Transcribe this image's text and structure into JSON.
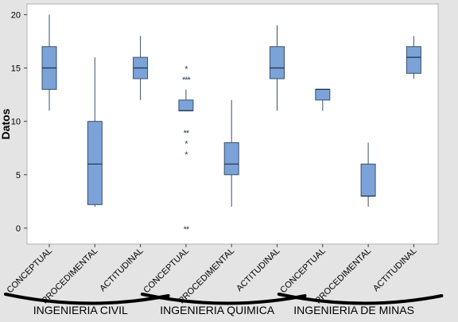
{
  "chart_data": {
    "type": "boxplot",
    "title": "",
    "xlabel": "",
    "ylabel": "Datos",
    "ylim": [
      -1.5,
      21
    ],
    "yticks": [
      0,
      5,
      10,
      15,
      20
    ],
    "grid": false,
    "box_color": "#7ba3d8",
    "box_edge_color": "#3a4f6b",
    "categories": [
      "CONCEPTUAL",
      "PROCEDIMENTAL",
      "ACTITUDINAL",
      "CONCEPTUAL",
      "PROCEDIMENTAL",
      "ACTITUDINAL",
      "CONCEPTUAL",
      "PROCEDIMENTAL",
      "ACTITUDINAL"
    ],
    "boxes": [
      {
        "whisker_low": 11,
        "q1": 13,
        "median": 15,
        "q3": 17,
        "whisker_high": 20,
        "outliers": []
      },
      {
        "whisker_low": 2,
        "q1": 2.2,
        "median": 6,
        "q3": 10,
        "whisker_high": 16,
        "outliers": []
      },
      {
        "whisker_low": 12,
        "q1": 14,
        "median": 15,
        "q3": 16,
        "whisker_high": 18,
        "outliers": []
      },
      {
        "whisker_low": 11,
        "q1": 11,
        "median": 11,
        "q3": 12,
        "whisker_high": 13,
        "outliers": [
          {
            "value": 15,
            "label": "*"
          },
          {
            "value": 14,
            "label": "***"
          },
          {
            "value": 9,
            "label": "**"
          },
          {
            "value": 8,
            "label": "*"
          },
          {
            "value": 7,
            "label": "*"
          },
          {
            "value": 0,
            "label": "**"
          }
        ]
      },
      {
        "whisker_low": 2,
        "q1": 5,
        "median": 6,
        "q3": 8,
        "whisker_high": 12,
        "outliers": []
      },
      {
        "whisker_low": 11,
        "q1": 14,
        "median": 15,
        "q3": 17,
        "whisker_high": 19,
        "outliers": []
      },
      {
        "whisker_low": 11,
        "q1": 12,
        "median": 13,
        "q3": 13,
        "whisker_high": 13,
        "outliers": []
      },
      {
        "whisker_low": 2,
        "q1": 3,
        "median": 3,
        "q3": 6,
        "whisker_high": 8,
        "outliers": []
      },
      {
        "whisker_low": 14,
        "q1": 14.5,
        "median": 16,
        "q3": 17,
        "whisker_high": 18,
        "outliers": []
      }
    ],
    "groups": [
      {
        "name": "INGENIERIA CIVIL",
        "span": [
          0,
          2
        ]
      },
      {
        "name": "INGENIERIA QUIMICA",
        "span": [
          3,
          5
        ]
      },
      {
        "name": "INGENIERIA DE MINAS",
        "span": [
          6,
          8
        ]
      }
    ]
  }
}
